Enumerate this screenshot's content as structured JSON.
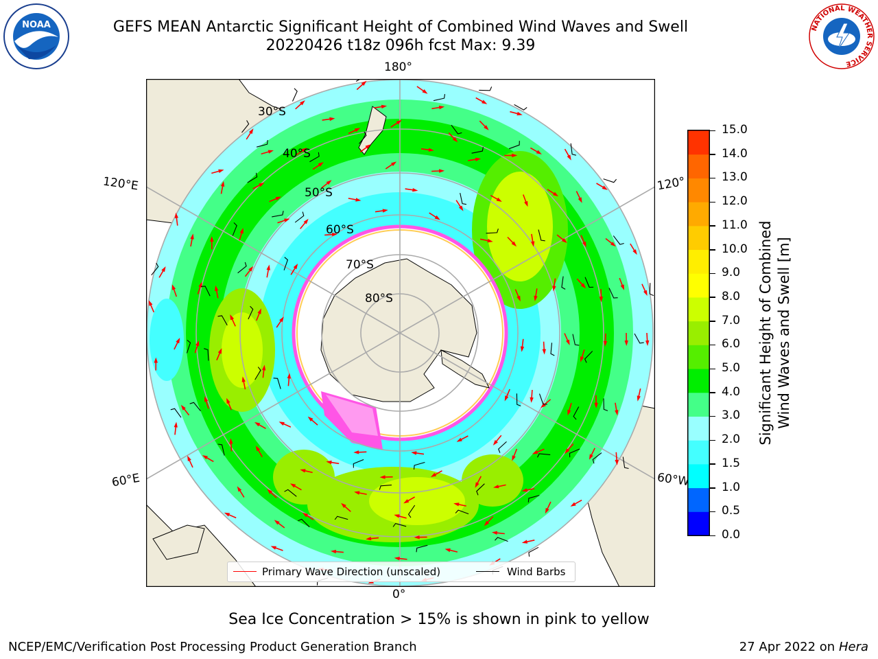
{
  "header": {
    "title_line1": "GEFS MEAN Antarctic Significant Height of Combined Wind Waves and Swell",
    "title_line2": "20220426 t18z 096h fcst   Max: 9.39"
  },
  "map": {
    "longitude_labels": {
      "top": "180°",
      "bottom": "0°",
      "left_upper": "120°E",
      "left_lower": "60°E",
      "right_upper": "120°",
      "right_lower": "60°W"
    },
    "latitude_labels": [
      "30°S",
      "40°S",
      "50°S",
      "60°S",
      "70°S",
      "80°S"
    ],
    "colors": {
      "land": "#efebda",
      "ice_pink": "#ff55e6",
      "ice_yellow": "#ffcc55"
    }
  },
  "colorbar": {
    "label_line1": "Significant Height of Combined",
    "label_line2": "Wind Waves and Swell [m]",
    "ticks": [
      "15.0",
      "14.0",
      "13.0",
      "12.0",
      "11.0",
      "10.0",
      "9.0",
      "8.0",
      "7.0",
      "6.0",
      "5.0",
      "4.0",
      "3.0",
      "2.0",
      "1.5",
      "1.0",
      "0.5",
      "0.0"
    ],
    "colors_bottom_to_top": [
      "#0000ff",
      "#0066ff",
      "#00ffff",
      "#44ffff",
      "#99ffff",
      "#44ff88",
      "#00ee00",
      "#55ee00",
      "#99ee00",
      "#ccff00",
      "#ffff00",
      "#ffee00",
      "#ffcc00",
      "#ffaa00",
      "#ff8800",
      "#ff6600",
      "#ff3300"
    ]
  },
  "legend": {
    "wave_direction_label": "Primary Wave Direction (unscaled)",
    "wind_barbs_label": "Wind Barbs",
    "wave_color": "#ff0000",
    "barb_color": "#000000"
  },
  "caption": "Sea Ice Concentration > 15% is shown in pink to yellow",
  "footer": {
    "left": "NCEP/EMC/Verification Post Processing Product Generation Branch",
    "right_prefix": "27 Apr 2022 on ",
    "right_machine": "Hera"
  },
  "logos": {
    "noaa_text": "NOAA",
    "nws_ring_text": "NATIONAL WEATHER SERVICE"
  }
}
